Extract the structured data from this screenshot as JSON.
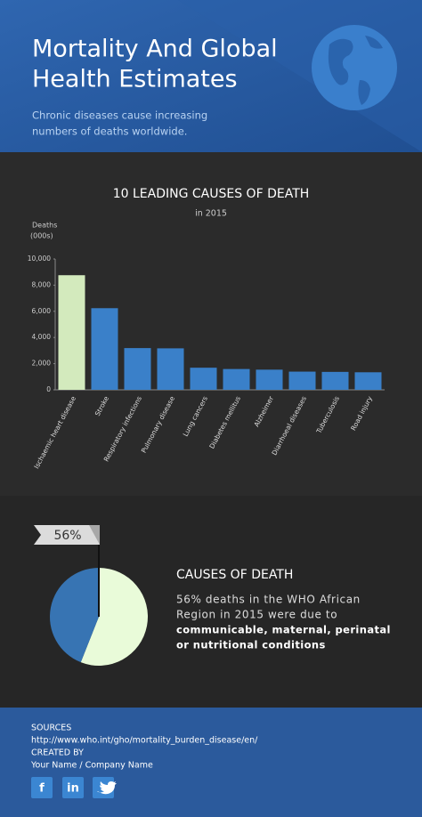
{
  "header": {
    "title_lines": [
      "Mortality And Global",
      "Health Estimates"
    ],
    "subtitle_lines": [
      "Chronic diseases cause increasing",
      "numbers of deaths worldwide."
    ]
  },
  "chart_data": [
    {
      "type": "bar",
      "title": "10 LEADING CAUSES OF DEATH",
      "subtitle": "in 2015",
      "ylabel": [
        "Deaths",
        "(000s)"
      ],
      "categories": [
        "Ischaemic heart disease",
        "Stroke",
        "Respiratory infections",
        "Pulmonary disease",
        "Lung cancers",
        "Diabetes mellitus",
        "Alzheimer",
        "Diarrhoeal diseases",
        "Tuberculosis",
        "Road injury"
      ],
      "values": [
        8760,
        6240,
        3190,
        3170,
        1690,
        1590,
        1540,
        1390,
        1370,
        1340
      ],
      "colors": [
        "#d3eabd",
        "#3a80c9",
        "#3a80c9",
        "#3a80c9",
        "#3a80c9",
        "#3a80c9",
        "#3a80c9",
        "#3a80c9",
        "#3a80c9",
        "#3a80c9"
      ],
      "ylim": [
        0,
        10000
      ],
      "yticks": [
        0,
        {
          "value": 2000,
          "label": "2,000"
        },
        {
          "value": 4000,
          "label": "4,000"
        },
        {
          "value": 6000,
          "label": "6,000"
        },
        {
          "value": 8000,
          "label": "8,000"
        },
        {
          "value": 10000,
          "label": "10,000"
        }
      ]
    },
    {
      "type": "pie",
      "title": "CAUSES OF DEATH",
      "values": [
        56,
        44
      ],
      "value_labels": [
        "56%",
        null
      ],
      "colors": [
        "#e9fbd9",
        "#3774b3"
      ],
      "text_lines": [
        "56% deaths in the WHO African",
        "Region in 2015 were due to"
      ],
      "bold_lines": [
        "communicable, maternal, perinatal",
        "or nutritional conditions"
      ]
    }
  ],
  "footer": {
    "sources_label": "SOURCES",
    "source_url": "http://www.who.int/gho/mortality_burden_disease/en/",
    "created_label": "CREATED BY",
    "author": "Your Name / Company Name",
    "social": [
      "f",
      "in"
    ]
  }
}
